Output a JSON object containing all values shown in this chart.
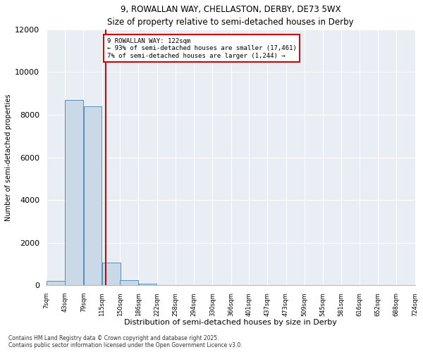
{
  "title_line1": "9, ROWALLAN WAY, CHELLASTON, DERBY, DE73 5WX",
  "title_line2": "Size of property relative to semi-detached houses in Derby",
  "xlabel": "Distribution of semi-detached houses by size in Derby",
  "ylabel": "Number of semi-detached properties",
  "footnote": "Contains HM Land Registry data © Crown copyright and database right 2025.\nContains public sector information licensed under the Open Government Licence v3.0.",
  "annotation_title": "9 ROWALLAN WAY: 122sqm",
  "annotation_line2": "← 93% of semi-detached houses are smaller (17,461)",
  "annotation_line3": "7% of semi-detached houses are larger (1,244) →",
  "property_size": 122,
  "bar_color": "#c9d9e8",
  "bar_edge_color": "#5b8db8",
  "vline_color": "#cc0000",
  "annotation_box_color": "#cc0000",
  "background_color": "#e8eef4",
  "ylim": [
    0,
    12000
  ],
  "yticks": [
    0,
    2000,
    4000,
    6000,
    8000,
    10000,
    12000
  ],
  "bins": [
    "7sqm",
    "43sqm",
    "79sqm",
    "115sqm",
    "150sqm",
    "186sqm",
    "222sqm",
    "258sqm",
    "294sqm",
    "330sqm",
    "366sqm",
    "401sqm",
    "437sqm",
    "473sqm",
    "509sqm",
    "545sqm",
    "581sqm",
    "616sqm",
    "652sqm",
    "688sqm",
    "724sqm"
  ],
  "bin_starts": [
    7,
    43,
    79,
    115,
    150,
    186,
    222,
    258,
    294,
    330,
    366,
    401,
    437,
    473,
    509,
    545,
    581,
    616,
    652,
    688
  ],
  "bin_width": 36,
  "values": [
    200,
    8700,
    8400,
    1050,
    250,
    60,
    5,
    0,
    0,
    0,
    0,
    0,
    0,
    0,
    0,
    0,
    0,
    0,
    0,
    0
  ]
}
